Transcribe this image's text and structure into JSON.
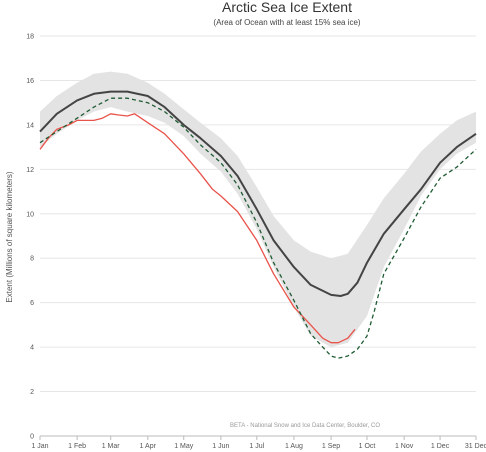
{
  "chart_data": {
    "type": "line",
    "title": "Arctic Sea Ice Extent",
    "subtitle": "(Area of Ocean with at least 15% sea ice)",
    "ylabel": "Extent (Millions of square kilometers)",
    "xlabel": "",
    "credit": "BETA - National Snow and Ice Data Center, Boulder, CO",
    "ylim": [
      0,
      18
    ],
    "xlim": [
      1,
      365
    ],
    "yticks": [
      0,
      2,
      4,
      6,
      8,
      10,
      12,
      14,
      16,
      18
    ],
    "xticks": [
      {
        "day": 1,
        "label": "1 Jan"
      },
      {
        "day": 32,
        "label": "1 Feb"
      },
      {
        "day": 60,
        "label": "1 Mar"
      },
      {
        "day": 91,
        "label": "1 Apr"
      },
      {
        "day": 121,
        "label": "1 May"
      },
      {
        "day": 152,
        "label": "1 Jun"
      },
      {
        "day": 182,
        "label": "1 Jul"
      },
      {
        "day": 213,
        "label": "1 Aug"
      },
      {
        "day": 244,
        "label": "1 Sep"
      },
      {
        "day": 274,
        "label": "1 Oct"
      },
      {
        "day": 305,
        "label": "1 Nov"
      },
      {
        "day": 335,
        "label": "1 Dec"
      },
      {
        "day": 365,
        "label": "31 Dec"
      }
    ],
    "grid": true,
    "band": {
      "x": [
        1,
        15,
        32,
        46,
        60,
        74,
        91,
        105,
        121,
        135,
        152,
        166,
        182,
        196,
        213,
        227,
        244,
        258,
        274,
        288,
        305,
        319,
        335,
        349,
        365
      ],
      "upper": [
        14.6,
        15.3,
        15.9,
        16.3,
        16.4,
        16.3,
        15.9,
        15.4,
        14.7,
        14.1,
        13.4,
        12.6,
        11.2,
        9.9,
        8.8,
        8.3,
        8.0,
        8.2,
        9.5,
        10.7,
        11.8,
        12.8,
        13.6,
        14.2,
        14.6
      ],
      "lower": [
        13.0,
        13.6,
        14.2,
        14.6,
        14.8,
        14.6,
        14.4,
        14.1,
        13.5,
        12.7,
        11.9,
        10.9,
        9.3,
        7.6,
        5.8,
        4.5,
        4.0,
        4.2,
        5.4,
        7.6,
        9.3,
        10.8,
        12.0,
        12.7,
        13.2
      ],
      "color": "#e3e3e3"
    },
    "series": [
      {
        "color": "#444444",
        "style": "solid",
        "x": [
          1,
          15,
          32,
          46,
          60,
          74,
          91,
          105,
          121,
          135,
          152,
          166,
          182,
          196,
          213,
          227,
          244,
          252,
          258,
          266,
          274,
          288,
          305,
          319,
          335,
          349,
          365
        ],
        "values": [
          13.7,
          14.5,
          15.1,
          15.4,
          15.5,
          15.5,
          15.3,
          14.8,
          14.0,
          13.4,
          12.6,
          11.7,
          10.2,
          8.8,
          7.6,
          6.8,
          6.35,
          6.3,
          6.4,
          6.9,
          7.8,
          9.1,
          10.2,
          11.1,
          12.3,
          13.0,
          13.6
        ]
      },
      {
        "color": "#e8534a",
        "style": "solid",
        "x": [
          1,
          8,
          15,
          25,
          32,
          38,
          46,
          53,
          60,
          66,
          74,
          80,
          91,
          105,
          121,
          135,
          145,
          152,
          166,
          182,
          196,
          213,
          227,
          237,
          244,
          250,
          258,
          264
        ],
        "values": [
          12.9,
          13.4,
          13.8,
          14.0,
          14.2,
          14.2,
          14.2,
          14.3,
          14.5,
          14.45,
          14.4,
          14.5,
          14.1,
          13.6,
          12.7,
          11.8,
          11.1,
          10.8,
          10.1,
          8.8,
          7.3,
          5.8,
          5.0,
          4.4,
          4.2,
          4.2,
          4.4,
          4.8
        ]
      },
      {
        "color": "#1f5c34",
        "style": "dashed",
        "x": [
          1,
          15,
          32,
          46,
          60,
          74,
          91,
          105,
          121,
          135,
          152,
          166,
          182,
          196,
          213,
          227,
          237,
          244,
          250,
          258,
          266,
          274,
          280,
          288,
          305,
          319,
          335,
          349,
          365
        ],
        "values": [
          13.2,
          13.7,
          14.3,
          14.8,
          15.2,
          15.2,
          15.0,
          14.6,
          13.9,
          13.1,
          12.3,
          11.3,
          9.6,
          7.8,
          6.1,
          4.6,
          4.0,
          3.6,
          3.5,
          3.6,
          3.9,
          4.5,
          5.6,
          7.3,
          8.9,
          10.3,
          11.6,
          12.1,
          12.9
        ]
      }
    ]
  }
}
